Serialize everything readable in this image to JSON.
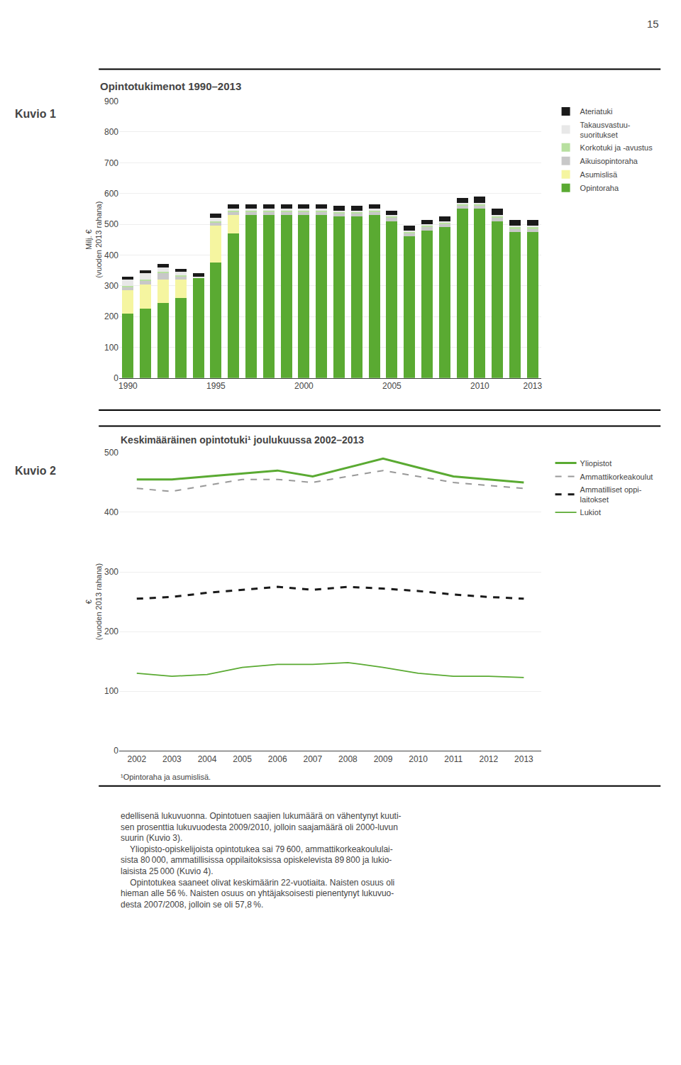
{
  "chart_data": [
    {
      "type": "bar",
      "stacked": true,
      "title": "Opintotukimenot 1990–2013",
      "ylabel": "Milj. €\n(vuoden 2013 rahana)",
      "categories": [
        "1990",
        null,
        null,
        null,
        null,
        "1995",
        null,
        null,
        null,
        null,
        "2000",
        null,
        null,
        null,
        null,
        "2005",
        null,
        null,
        null,
        null,
        "2010",
        null,
        null,
        "2013"
      ],
      "series": [
        {
          "name": "Opintoraha",
          "color": "#5aaa32",
          "values": [
            210,
            225,
            245,
            260,
            325,
            375,
            470,
            530,
            530,
            530,
            530,
            530,
            525,
            525,
            530,
            510,
            460,
            480,
            490,
            550,
            550,
            510,
            475,
            475
          ]
        },
        {
          "name": "Asumislisä",
          "color": "#f5f5a0",
          "values": [
            75,
            80,
            75,
            60,
            0,
            120,
            60,
            0,
            0,
            0,
            0,
            0,
            0,
            0,
            0,
            0,
            0,
            0,
            0,
            0,
            0,
            0,
            0,
            0
          ]
        },
        {
          "name": "Aikuisopintoraha",
          "color": "#c8c8c8",
          "values": [
            10,
            10,
            20,
            10,
            0,
            10,
            10,
            10,
            10,
            10,
            10,
            10,
            10,
            10,
            10,
            10,
            10,
            10,
            10,
            10,
            10,
            10,
            10,
            10
          ]
        },
        {
          "name": "Korkotuki ja -avustus",
          "color": "#b8e0a0",
          "values": [
            5,
            5,
            5,
            5,
            0,
            5,
            5,
            5,
            5,
            5,
            5,
            5,
            5,
            5,
            5,
            5,
            5,
            5,
            5,
            5,
            5,
            5,
            5,
            5
          ]
        },
        {
          "name": "Takausvastuu-\nsuoritukset",
          "color": "#e8e8e8",
          "values": [
            20,
            20,
            15,
            10,
            5,
            10,
            5,
            5,
            5,
            5,
            5,
            5,
            5,
            5,
            5,
            5,
            5,
            5,
            5,
            5,
            5,
            5,
            5,
            5
          ]
        },
        {
          "name": "Ateriatuki",
          "color": "#1a1a1a",
          "values": [
            10,
            10,
            10,
            10,
            10,
            15,
            15,
            15,
            15,
            15,
            15,
            15,
            15,
            15,
            15,
            15,
            15,
            15,
            15,
            15,
            20,
            20,
            20,
            20
          ]
        }
      ],
      "ylim": [
        0,
        900
      ],
      "yticks": [
        0,
        100,
        200,
        300,
        400,
        500,
        600,
        700,
        800,
        900
      ],
      "grid": true,
      "legend": "right",
      "annotations": {
        "page_number": "15",
        "figure_label": "Kuvio 1"
      }
    },
    {
      "type": "line",
      "title": "Keskimääräinen opintotuki¹ joulukuussa 2002–2013",
      "ylabel": "€\n(vuoden 2013 rahana)",
      "categories": [
        "2002",
        "2003",
        "2004",
        "2005",
        "2006",
        "2007",
        "2008",
        "2009",
        "2010",
        "2011",
        "2012",
        "2013"
      ],
      "series": [
        {
          "name": "Yliopistot",
          "color": "#5aaa32",
          "line_style": "solid",
          "values": [
            455,
            455,
            460,
            465,
            470,
            460,
            475,
            490,
            475,
            460,
            455,
            450
          ]
        },
        {
          "name": "Ammattikorkeakoulut",
          "color": "#999999",
          "line_style": "dashed",
          "values": [
            440,
            435,
            445,
            455,
            455,
            450,
            460,
            470,
            460,
            450,
            445,
            440
          ]
        },
        {
          "name": "Ammatilliset oppi-\nlaitokset",
          "color": "#1a1a1a",
          "line_style": "dashed",
          "values": [
            255,
            258,
            265,
            270,
            275,
            270,
            275,
            272,
            268,
            262,
            258,
            255
          ]
        },
        {
          "name": "Lukiot",
          "color": "#5aaa32",
          "line_style": "solid",
          "values": [
            130,
            125,
            128,
            140,
            145,
            145,
            148,
            140,
            130,
            125,
            125,
            123
          ]
        }
      ],
      "ylim": [
        0,
        500
      ],
      "yticks": [
        0,
        100,
        200,
        300,
        400,
        500
      ],
      "grid": true,
      "legend": "right",
      "annotations": {
        "figure_label": "Kuvio 2",
        "footnote": "¹Opintoraha ja asumislisä.",
        "text": "edellisenä lukuvuonna. Opintotuen saajien lukumäärä on vähentynyt kuuti-\nsen prosenttia lukuvuodesta 2009/2010, jolloin saajamäärä oli 2000-luvun\nsuurin (Kuvio 3).\n    Yliopisto-opiskelijoista opintotukea sai 79 600, ammattikorkeakoululai-\nsista 80 000, ammatillisissa oppilaitoksissa opiskelevista 89 800 ja lukio-\nlaisista 25 000 (Kuvio 4).\n    Opintotukea saaneet olivat keskimäärin 22-vuotiaita. Naisten osuus oli\nhieman alle 56 %. Naisten osuus on yhtäjaksoisesti pienentynyt lukuvuo-\ndesta 2007/2008, jolloin se oli 57,8 %."
      }
    }
  ]
}
